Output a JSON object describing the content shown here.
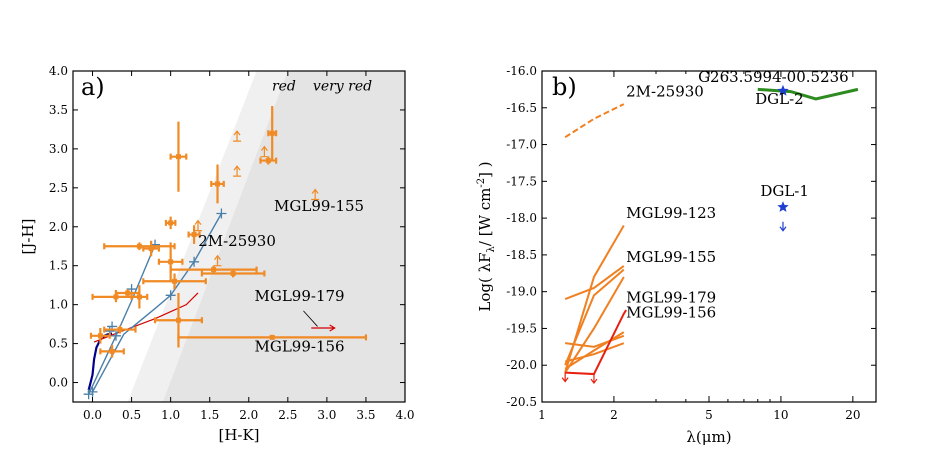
{
  "chart_data": [
    {
      "panel": "a)",
      "type": "scatter",
      "xlabel": "[H-K]",
      "ylabel": "[J-H]",
      "xlim": [
        -0.25,
        4.0
      ],
      "ylim": [
        -0.25,
        4.0
      ],
      "xticks": [
        "0.0",
        "0.5",
        "1.0",
        "1.5",
        "2.0",
        "2.5",
        "3.0",
        "3.5",
        "4.0"
      ],
      "yticks": [
        "0.0",
        "0.5",
        "1.0",
        "1.5",
        "2.0",
        "2.5",
        "3.0",
        "3.5",
        "4.0"
      ],
      "regions": [
        {
          "label": "red",
          "color": "#f0f0f0",
          "poly": [
            [
              0.45,
              -0.25
            ],
            [
              2.1,
              4.0
            ],
            [
              4.0,
              4.0
            ],
            [
              4.0,
              -0.25
            ]
          ]
        },
        {
          "label": "very red",
          "color": "#e4e4e4",
          "poly": [
            [
              0.9,
              -0.25
            ],
            [
              2.5,
              4.0
            ],
            [
              4.0,
              4.0
            ],
            [
              4.0,
              -0.25
            ]
          ]
        }
      ],
      "lines": [
        {
          "color": "#00008b",
          "width": 2.2,
          "points": [
            [
              -0.05,
              -0.1
            ],
            [
              0.0,
              0.1
            ],
            [
              0.02,
              0.3
            ],
            [
              0.05,
              0.45
            ],
            [
              0.1,
              0.55
            ],
            [
              0.15,
              0.6
            ],
            [
              0.2,
              0.62
            ],
            [
              0.25,
              0.63
            ]
          ]
        },
        {
          "color": "#d40000",
          "width": 1.2,
          "points": [
            [
              0.02,
              0.52
            ],
            [
              0.3,
              0.63
            ],
            [
              0.8,
              0.82
            ],
            [
              1.2,
              1.0
            ],
            [
              1.35,
              1.15
            ]
          ]
        },
        {
          "color": "#4a7fa8",
          "width": 1.4,
          "points": [
            [
              -0.05,
              -0.15
            ],
            [
              0.3,
              0.6
            ],
            [
              0.5,
              1.05
            ],
            [
              0.8,
              1.77
            ]
          ]
        },
        {
          "color": "#4a7fa8",
          "width": 1.4,
          "points": [
            [
              0.0,
              -0.12
            ],
            [
              0.4,
              0.62
            ],
            [
              0.8,
              0.95
            ],
            [
              1.0,
              1.12
            ],
            [
              1.3,
              1.55
            ],
            [
              1.65,
              2.17
            ]
          ]
        }
      ],
      "crosses": [
        [
          -0.05,
          -0.15
        ],
        [
          0.0,
          -0.12
        ],
        [
          0.22,
          0.66
        ],
        [
          0.25,
          0.72
        ],
        [
          0.3,
          0.6
        ],
        [
          0.5,
          1.2
        ],
        [
          0.8,
          1.77
        ],
        [
          1.0,
          1.12
        ],
        [
          1.3,
          1.55
        ],
        [
          1.65,
          2.17
        ]
      ],
      "sources": [
        {
          "x": 0.1,
          "y": 0.6,
          "xerr": 0.12,
          "yerr": 0.1
        },
        {
          "x": 0.25,
          "y": 0.4,
          "xerr": 0.15,
          "yerr": 0.08
        },
        {
          "x": 0.35,
          "y": 0.68,
          "xerr": 0.2,
          "yerr": 0.05
        },
        {
          "x": 0.3,
          "y": 1.1,
          "xerr": 0.3,
          "yerr": 0.07
        },
        {
          "x": 0.45,
          "y": 1.15,
          "xerr": 0.15,
          "yerr": 0.05
        },
        {
          "x": 0.6,
          "y": 1.1,
          "xerr": 0.1,
          "yerr": 0.15
        },
        {
          "x": 0.6,
          "y": 1.75,
          "xerr": 0.45,
          "yerr": 0.05
        },
        {
          "x": 0.75,
          "y": 1.72,
          "xerr": 0.1,
          "yerr": 0.1
        },
        {
          "x": 1.05,
          "y": 1.3,
          "xerr": 0.4,
          "yerr": 0.1
        },
        {
          "x": 1.0,
          "y": 1.55,
          "xerr": 0.15,
          "yerr": 0.25
        },
        {
          "x": 1.0,
          "y": 2.05,
          "xerr": 0.06,
          "yerr": 0.08
        },
        {
          "x": 1.1,
          "y": 2.9,
          "xerr": 0.1,
          "yerr": 0.45
        },
        {
          "x": 1.1,
          "y": 0.8,
          "xerr": 0.3,
          "yerr": 0.35
        },
        {
          "x": 1.3,
          "y": 1.9,
          "xerr": 0.07,
          "yerr": 0.12
        },
        {
          "x": 1.55,
          "y": 1.45,
          "xerr": 0.55,
          "yerr": 0.05
        },
        {
          "x": 1.6,
          "y": 2.55,
          "xerr": 0.08,
          "yerr": 0.25
        },
        {
          "x": 1.8,
          "y": 1.4,
          "xerr": 0.4,
          "yerr": 0.05
        },
        {
          "x": 2.3,
          "y": 3.2,
          "xerr": 0.05,
          "yerr": 0.35
        },
        {
          "x": 2.25,
          "y": 2.85,
          "xerr": 0.1,
          "yerr": 0.05
        },
        {
          "x": 2.3,
          "y": 0.58,
          "xerr": 1.2,
          "yerr": 0.0
        }
      ],
      "upper_arrows": [
        [
          1.85,
          3.1
        ],
        [
          1.35,
          1.95
        ],
        [
          1.6,
          1.5
        ],
        [
          2.2,
          2.9
        ],
        [
          1.85,
          2.65
        ],
        [
          2.85,
          2.35
        ]
      ],
      "red_arrow": {
        "x": 2.8,
        "y": 0.7,
        "dx": 0.3
      },
      "annotations": [
        {
          "text": "red",
          "x": 2.45,
          "y": 3.75,
          "italic": true
        },
        {
          "text": "very red",
          "x": 3.2,
          "y": 3.75,
          "italic": true
        },
        {
          "text": "MGL99-155",
          "x": 2.9,
          "y": 2.2,
          "italic": false
        },
        {
          "text": "2M-25930",
          "x": 1.85,
          "y": 1.75,
          "italic": false
        },
        {
          "text": "MGL99-179",
          "x": 2.65,
          "y": 1.05,
          "italic": false
        },
        {
          "text": "MGL99-156",
          "x": 2.65,
          "y": 0.4,
          "italic": false
        }
      ],
      "pointer_line": [
        [
          2.7,
          0.92
        ],
        [
          2.88,
          0.72
        ]
      ]
    },
    {
      "panel": "b)",
      "type": "line",
      "xlabel": "λ(μm)",
      "ylabel": "Log( λF",
      "xscale": "log",
      "xlim": [
        1.0,
        25.0
      ],
      "ylim": [
        -20.5,
        -16.0
      ],
      "xticks": [
        "1",
        "2",
        "5",
        "10",
        "20"
      ],
      "yticks": [
        "-16.0",
        "-16.5",
        "-17.0",
        "-17.5",
        "-18.0",
        "-18.5",
        "-19.0",
        "-19.5",
        "-20.0",
        "-20.5"
      ],
      "series": [
        {
          "color": "#f08020",
          "dashed": true,
          "points": [
            [
              1.25,
              -16.9
            ],
            [
              1.65,
              -16.65
            ],
            [
              2.2,
              -16.45
            ]
          ]
        },
        {
          "color": "#f08020",
          "dashed": false,
          "points": [
            [
              1.25,
              -20.1
            ],
            [
              1.65,
              -18.8
            ],
            [
              2.2,
              -18.1
            ]
          ]
        },
        {
          "color": "#f08020",
          "dashed": false,
          "points": [
            [
              1.25,
              -19.1
            ],
            [
              1.65,
              -18.95
            ],
            [
              2.2,
              -18.65
            ]
          ]
        },
        {
          "color": "#f08020",
          "dashed": false,
          "points": [
            [
              1.25,
              -20.0
            ],
            [
              1.65,
              -19.05
            ],
            [
              2.2,
              -18.7
            ]
          ]
        },
        {
          "color": "#f08020",
          "dashed": false,
          "points": [
            [
              1.25,
              -20.1
            ],
            [
              1.65,
              -19.5
            ],
            [
              2.2,
              -18.8
            ]
          ]
        },
        {
          "color": "#f08020",
          "dashed": false,
          "points": [
            [
              1.25,
              -19.7
            ],
            [
              1.65,
              -19.75
            ],
            [
              2.2,
              -19.6
            ]
          ]
        },
        {
          "color": "#f08020",
          "dashed": false,
          "points": [
            [
              1.25,
              -20.05
            ],
            [
              1.65,
              -19.8
            ],
            [
              2.2,
              -19.55
            ]
          ]
        },
        {
          "color": "#f08020",
          "dashed": false,
          "points": [
            [
              1.25,
              -19.95
            ],
            [
              1.65,
              -19.85
            ],
            [
              2.2,
              -19.7
            ]
          ]
        },
        {
          "color": "#e82010",
          "dashed": false,
          "points": [
            [
              1.25,
              -20.1
            ],
            [
              1.65,
              -20.12
            ],
            [
              2.2,
              -19.3
            ],
            [
              2.25,
              -19.25
            ]
          ]
        },
        {
          "color": "#2e8b20",
          "dashed": false,
          "points": [
            [
              8.0,
              -16.25
            ],
            [
              11.0,
              -16.28
            ],
            [
              14.0,
              -16.38
            ],
            [
              21.0,
              -16.25
            ]
          ]
        }
      ],
      "down_arrows": [
        [
          1.25,
          -20.1,
          "#e82010"
        ],
        [
          1.65,
          -20.12,
          "#e82010"
        ],
        [
          10.2,
          -18.05,
          "#1f3fd0"
        ]
      ],
      "stars": [
        [
          10.2,
          -16.27
        ],
        [
          10.2,
          -17.85
        ]
      ],
      "annotations": [
        {
          "text": "2M-25930",
          "x": 2.25,
          "y": -16.35
        },
        {
          "text": "G263.5994-00.5236",
          "x": 4.5,
          "y": -16.15
        },
        {
          "text": "DGL-2",
          "x": 7.8,
          "y": -16.45
        },
        {
          "text": "DGL-1",
          "x": 8.2,
          "y": -17.7
        },
        {
          "text": "MGL99-123",
          "x": 2.25,
          "y": -18.0
        },
        {
          "text": "MGL99-155",
          "x": 2.25,
          "y": -18.6
        },
        {
          "text": "MGL99-179",
          "x": 2.25,
          "y": -19.15
        },
        {
          "text": "MGL99-156",
          "x": 2.25,
          "y": -19.35
        }
      ]
    }
  ]
}
